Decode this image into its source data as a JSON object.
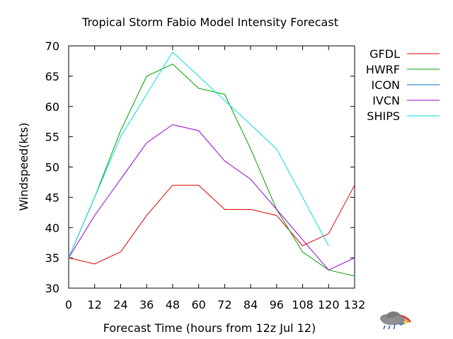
{
  "chart_data": {
    "type": "line",
    "title": "Tropical Storm Fabio Model Intensity Forecast",
    "xlabel": "Forecast Time  (hours from 12z  Jul 12)",
    "ylabel": "Windspeed(kts)",
    "xlim": [
      0,
      132
    ],
    "ylim": [
      30,
      70
    ],
    "xticks": [
      0,
      12,
      24,
      36,
      48,
      60,
      72,
      84,
      96,
      108,
      120,
      132
    ],
    "yticks": [
      30,
      35,
      40,
      45,
      50,
      55,
      60,
      65,
      70
    ],
    "grid": false,
    "legend": "right",
    "series": [
      {
        "name": "GFDL",
        "color": "#e00000",
        "x": [
          0,
          12,
          24,
          36,
          48,
          60,
          72,
          84,
          96,
          108,
          120,
          132
        ],
        "y": [
          35,
          34,
          36,
          42,
          47,
          47,
          43,
          43,
          42,
          37,
          39,
          47
        ]
      },
      {
        "name": "HWRF",
        "color": "#00a000",
        "x": [
          0,
          12,
          24,
          36,
          48,
          60,
          72,
          84,
          96,
          108,
          120,
          132
        ],
        "y": [
          35,
          45,
          56,
          65,
          67,
          63,
          62,
          53,
          43,
          36,
          33,
          32
        ]
      },
      {
        "name": "ICON",
        "color": "#0070c0",
        "x": [],
        "y": []
      },
      {
        "name": "IVCN",
        "color": "#9400d3",
        "x": [
          0,
          12,
          24,
          36,
          48,
          60,
          72,
          84,
          96,
          108,
          120,
          132
        ],
        "y": [
          35,
          42,
          48,
          54,
          57,
          56,
          51,
          48,
          43,
          38,
          33,
          35
        ]
      },
      {
        "name": "SHIPS",
        "color": "#00dede",
        "x": [
          0,
          12,
          24,
          36,
          48,
          60,
          72,
          84,
          96,
          108,
          120
        ],
        "y": [
          35,
          45,
          55,
          62,
          69,
          65,
          61,
          57,
          53,
          45,
          37
        ]
      }
    ]
  },
  "logo": {
    "name": "storm-cloud-rainbow-logo"
  }
}
